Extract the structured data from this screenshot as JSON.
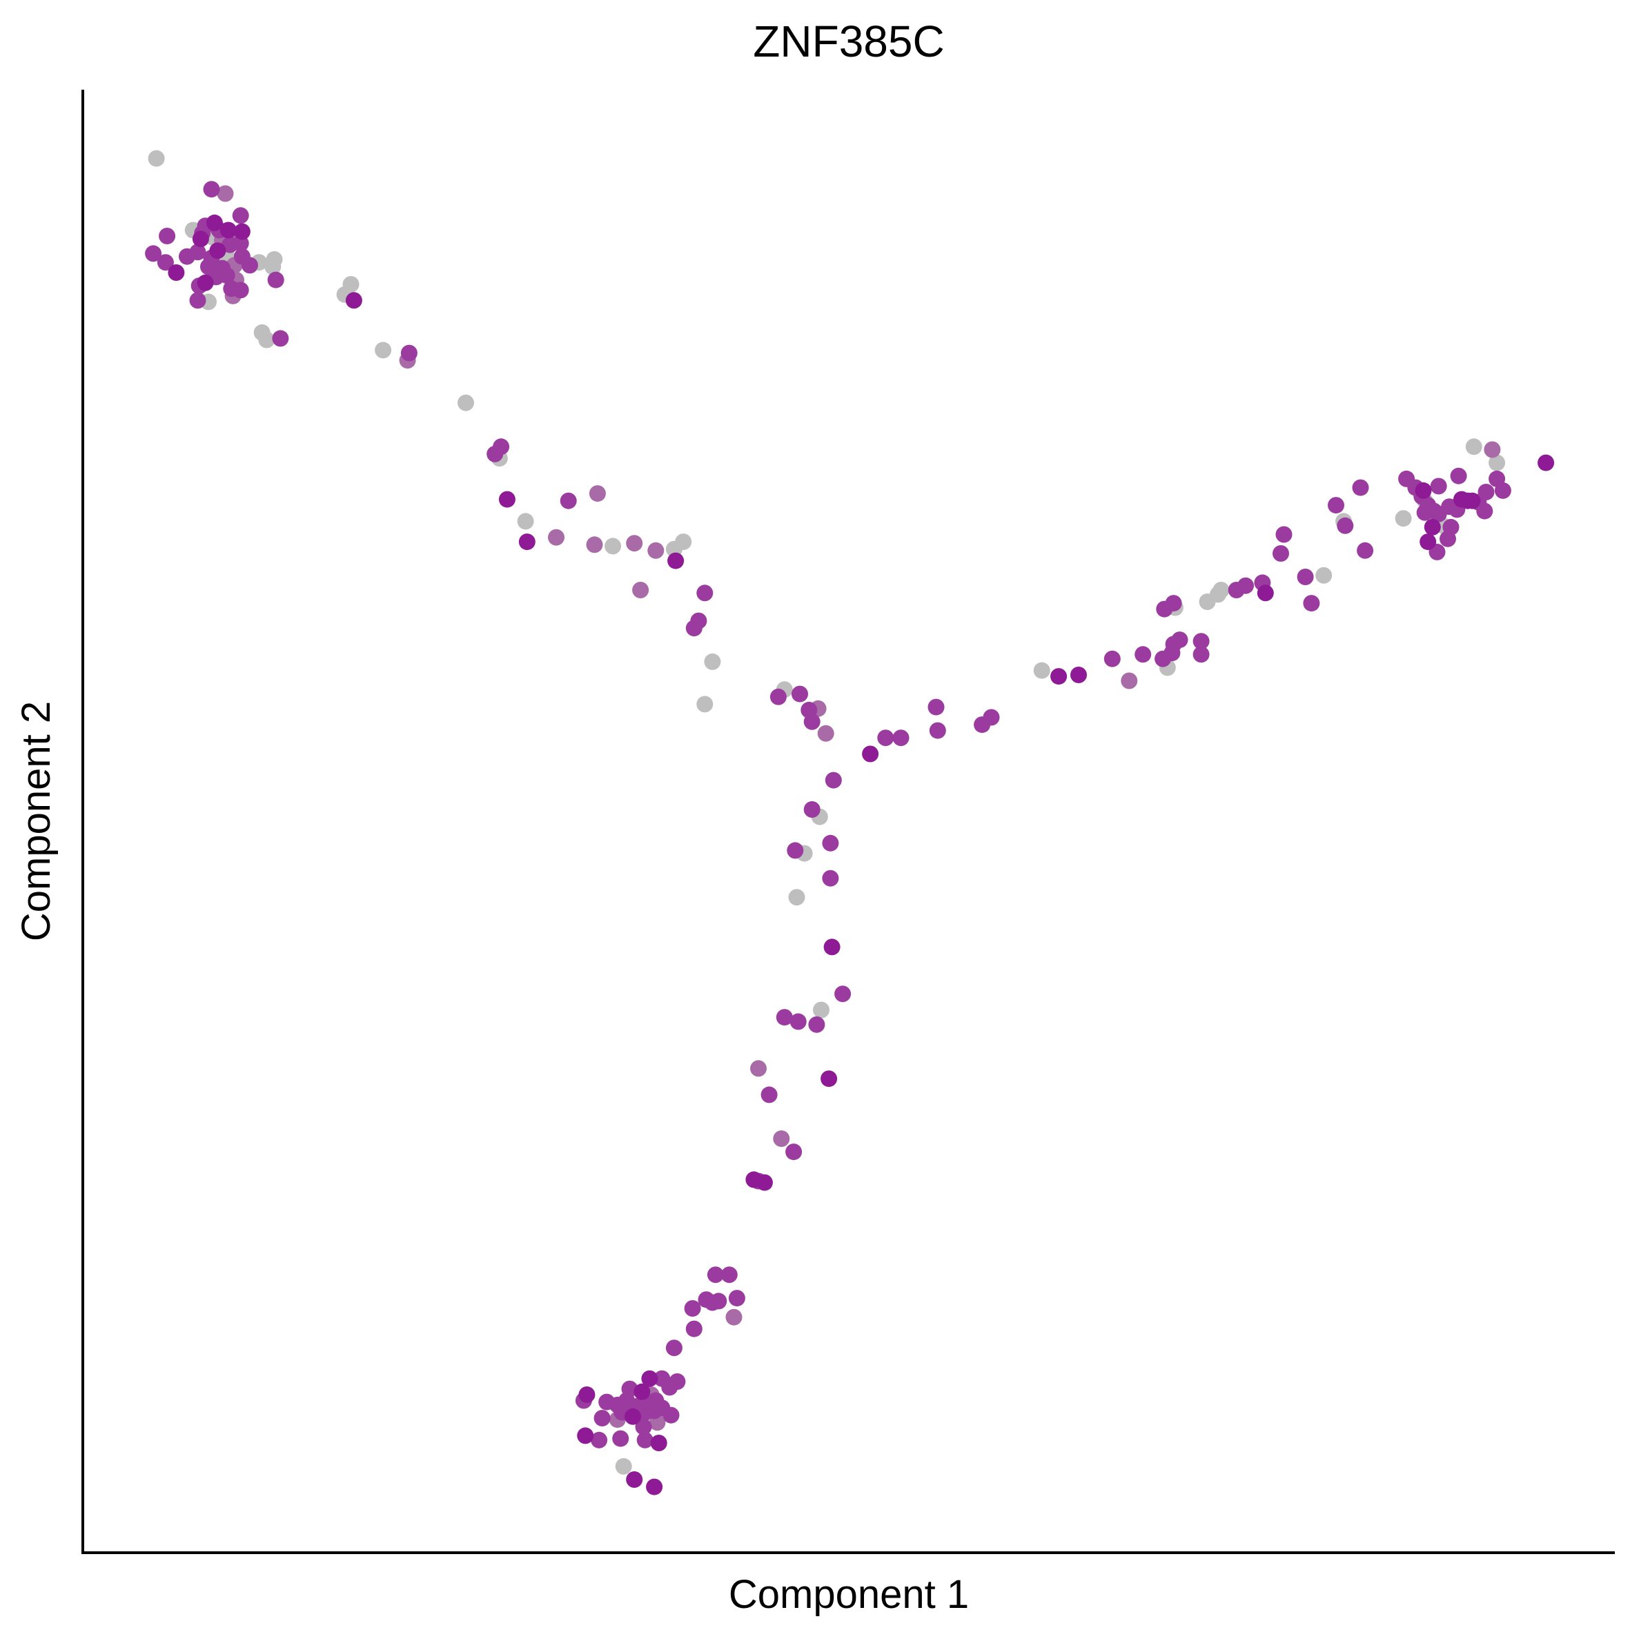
{
  "chart_data": {
    "type": "scatter",
    "title": "ZNF385C",
    "xlabel": "Component 1",
    "ylabel": "Component 2",
    "xlim": [
      0,
      1
    ],
    "ylim": [
      0,
      1
    ],
    "x_ticks": [],
    "y_ticks": [],
    "grid": false,
    "legend": "none",
    "colors": {
      "high": "#8e1a96",
      "mid": "#9b3b9f",
      "low": "#a96aa8",
      "none": "#bebebe"
    },
    "points": [
      {
        "x": 0.048,
        "y": 0.953,
        "level": "none"
      },
      {
        "x": 0.084,
        "y": 0.932,
        "level": "mid"
      },
      {
        "x": 0.093,
        "y": 0.929,
        "level": "low"
      },
      {
        "x": 0.103,
        "y": 0.914,
        "level": "mid"
      },
      {
        "x": 0.08,
        "y": 0.907,
        "level": "mid"
      },
      {
        "x": 0.086,
        "y": 0.909,
        "level": "high"
      },
      {
        "x": 0.072,
        "y": 0.904,
        "level": "none"
      },
      {
        "x": 0.078,
        "y": 0.902,
        "level": "mid"
      },
      {
        "x": 0.085,
        "y": 0.899,
        "level": "none"
      },
      {
        "x": 0.089,
        "y": 0.904,
        "level": "mid"
      },
      {
        "x": 0.095,
        "y": 0.904,
        "level": "high"
      },
      {
        "x": 0.098,
        "y": 0.899,
        "level": "low"
      },
      {
        "x": 0.104,
        "y": 0.903,
        "level": "high"
      },
      {
        "x": 0.055,
        "y": 0.9,
        "level": "mid"
      },
      {
        "x": 0.077,
        "y": 0.898,
        "level": "high"
      },
      {
        "x": 0.091,
        "y": 0.897,
        "level": "low"
      },
      {
        "x": 0.096,
        "y": 0.894,
        "level": "mid"
      },
      {
        "x": 0.103,
        "y": 0.895,
        "level": "mid"
      },
      {
        "x": 0.046,
        "y": 0.888,
        "level": "mid"
      },
      {
        "x": 0.068,
        "y": 0.886,
        "level": "mid"
      },
      {
        "x": 0.075,
        "y": 0.889,
        "level": "mid"
      },
      {
        "x": 0.084,
        "y": 0.885,
        "level": "mid"
      },
      {
        "x": 0.088,
        "y": 0.89,
        "level": "high"
      },
      {
        "x": 0.094,
        "y": 0.886,
        "level": "none"
      },
      {
        "x": 0.104,
        "y": 0.886,
        "level": "mid"
      },
      {
        "x": 0.115,
        "y": 0.882,
        "level": "none"
      },
      {
        "x": 0.125,
        "y": 0.884,
        "level": "none"
      },
      {
        "x": 0.054,
        "y": 0.882,
        "level": "mid"
      },
      {
        "x": 0.082,
        "y": 0.879,
        "level": "mid"
      },
      {
        "x": 0.091,
        "y": 0.878,
        "level": "mid"
      },
      {
        "x": 0.099,
        "y": 0.88,
        "level": "low"
      },
      {
        "x": 0.109,
        "y": 0.88,
        "level": "mid"
      },
      {
        "x": 0.124,
        "y": 0.879,
        "level": "none"
      },
      {
        "x": 0.061,
        "y": 0.875,
        "level": "high"
      },
      {
        "x": 0.087,
        "y": 0.872,
        "level": "mid"
      },
      {
        "x": 0.094,
        "y": 0.873,
        "level": "mid"
      },
      {
        "x": 0.1,
        "y": 0.87,
        "level": "low"
      },
      {
        "x": 0.126,
        "y": 0.87,
        "level": "mid"
      },
      {
        "x": 0.08,
        "y": 0.868,
        "level": "high"
      },
      {
        "x": 0.076,
        "y": 0.866,
        "level": "mid"
      },
      {
        "x": 0.097,
        "y": 0.864,
        "level": "mid"
      },
      {
        "x": 0.103,
        "y": 0.863,
        "level": "mid"
      },
      {
        "x": 0.098,
        "y": 0.859,
        "level": "low"
      },
      {
        "x": 0.075,
        "y": 0.856,
        "level": "mid"
      },
      {
        "x": 0.082,
        "y": 0.855,
        "level": "none"
      },
      {
        "x": 0.175,
        "y": 0.867,
        "level": "none"
      },
      {
        "x": 0.171,
        "y": 0.86,
        "level": "none"
      },
      {
        "x": 0.177,
        "y": 0.856,
        "level": "high"
      },
      {
        "x": 0.117,
        "y": 0.834,
        "level": "none"
      },
      {
        "x": 0.12,
        "y": 0.829,
        "level": "none"
      },
      {
        "x": 0.129,
        "y": 0.83,
        "level": "mid"
      },
      {
        "x": 0.196,
        "y": 0.822,
        "level": "none"
      },
      {
        "x": 0.213,
        "y": 0.82,
        "level": "mid"
      },
      {
        "x": 0.212,
        "y": 0.815,
        "level": "low"
      },
      {
        "x": 0.25,
        "y": 0.786,
        "level": "none"
      },
      {
        "x": 0.273,
        "y": 0.756,
        "level": "mid"
      },
      {
        "x": 0.269,
        "y": 0.751,
        "level": "mid"
      },
      {
        "x": 0.272,
        "y": 0.748,
        "level": "none"
      },
      {
        "x": 0.277,
        "y": 0.72,
        "level": "high"
      },
      {
        "x": 0.289,
        "y": 0.705,
        "level": "none"
      },
      {
        "x": 0.29,
        "y": 0.691,
        "level": "high"
      },
      {
        "x": 0.309,
        "y": 0.694,
        "level": "low"
      },
      {
        "x": 0.317,
        "y": 0.719,
        "level": "mid"
      },
      {
        "x": 0.336,
        "y": 0.724,
        "level": "low"
      },
      {
        "x": 0.334,
        "y": 0.689,
        "level": "low"
      },
      {
        "x": 0.346,
        "y": 0.688,
        "level": "none"
      },
      {
        "x": 0.36,
        "y": 0.69,
        "level": "low"
      },
      {
        "x": 0.374,
        "y": 0.685,
        "level": "low"
      },
      {
        "x": 0.386,
        "y": 0.686,
        "level": "none"
      },
      {
        "x": 0.392,
        "y": 0.691,
        "level": "none"
      },
      {
        "x": 0.387,
        "y": 0.678,
        "level": "high"
      },
      {
        "x": 0.364,
        "y": 0.658,
        "level": "low"
      },
      {
        "x": 0.406,
        "y": 0.656,
        "level": "mid"
      },
      {
        "x": 0.402,
        "y": 0.637,
        "level": "mid"
      },
      {
        "x": 0.399,
        "y": 0.632,
        "level": "mid"
      },
      {
        "x": 0.411,
        "y": 0.609,
        "level": "none"
      },
      {
        "x": 0.406,
        "y": 0.58,
        "level": "none"
      },
      {
        "x": 0.458,
        "y": 0.59,
        "level": "none"
      },
      {
        "x": 0.454,
        "y": 0.585,
        "level": "mid"
      },
      {
        "x": 0.468,
        "y": 0.587,
        "level": "mid"
      },
      {
        "x": 0.474,
        "y": 0.576,
        "level": "mid"
      },
      {
        "x": 0.48,
        "y": 0.577,
        "level": "low"
      },
      {
        "x": 0.476,
        "y": 0.568,
        "level": "mid"
      },
      {
        "x": 0.485,
        "y": 0.56,
        "level": "low"
      },
      {
        "x": 0.514,
        "y": 0.546,
        "level": "high"
      },
      {
        "x": 0.524,
        "y": 0.557,
        "level": "mid"
      },
      {
        "x": 0.534,
        "y": 0.557,
        "level": "mid"
      },
      {
        "x": 0.558,
        "y": 0.562,
        "level": "mid"
      },
      {
        "x": 0.557,
        "y": 0.578,
        "level": "mid"
      },
      {
        "x": 0.587,
        "y": 0.566,
        "level": "mid"
      },
      {
        "x": 0.593,
        "y": 0.571,
        "level": "mid"
      },
      {
        "x": 0.49,
        "y": 0.528,
        "level": "mid"
      },
      {
        "x": 0.476,
        "y": 0.508,
        "level": "mid"
      },
      {
        "x": 0.481,
        "y": 0.503,
        "level": "none"
      },
      {
        "x": 0.488,
        "y": 0.485,
        "level": "mid"
      },
      {
        "x": 0.465,
        "y": 0.48,
        "level": "mid"
      },
      {
        "x": 0.471,
        "y": 0.478,
        "level": "none"
      },
      {
        "x": 0.488,
        "y": 0.461,
        "level": "mid"
      },
      {
        "x": 0.466,
        "y": 0.448,
        "level": "none"
      },
      {
        "x": 0.489,
        "y": 0.414,
        "level": "high"
      },
      {
        "x": 0.496,
        "y": 0.382,
        "level": "mid"
      },
      {
        "x": 0.482,
        "y": 0.371,
        "level": "none"
      },
      {
        "x": 0.458,
        "y": 0.366,
        "level": "mid"
      },
      {
        "x": 0.467,
        "y": 0.363,
        "level": "mid"
      },
      {
        "x": 0.479,
        "y": 0.361,
        "level": "mid"
      },
      {
        "x": 0.487,
        "y": 0.324,
        "level": "high"
      },
      {
        "x": 0.441,
        "y": 0.331,
        "level": "low"
      },
      {
        "x": 0.448,
        "y": 0.313,
        "level": "mid"
      },
      {
        "x": 0.456,
        "y": 0.283,
        "level": "low"
      },
      {
        "x": 0.464,
        "y": 0.274,
        "level": "mid"
      },
      {
        "x": 0.438,
        "y": 0.255,
        "level": "high"
      },
      {
        "x": 0.441,
        "y": 0.254,
        "level": "mid"
      },
      {
        "x": 0.445,
        "y": 0.253,
        "level": "high"
      },
      {
        "x": 0.413,
        "y": 0.19,
        "level": "mid"
      },
      {
        "x": 0.422,
        "y": 0.19,
        "level": "mid"
      },
      {
        "x": 0.407,
        "y": 0.173,
        "level": "mid"
      },
      {
        "x": 0.411,
        "y": 0.171,
        "level": "mid"
      },
      {
        "x": 0.415,
        "y": 0.172,
        "level": "mid"
      },
      {
        "x": 0.427,
        "y": 0.174,
        "level": "mid"
      },
      {
        "x": 0.398,
        "y": 0.167,
        "level": "mid"
      },
      {
        "x": 0.425,
        "y": 0.161,
        "level": "low"
      },
      {
        "x": 0.399,
        "y": 0.153,
        "level": "mid"
      },
      {
        "x": 0.386,
        "y": 0.14,
        "level": "mid"
      },
      {
        "x": 0.37,
        "y": 0.119,
        "level": "high"
      },
      {
        "x": 0.378,
        "y": 0.119,
        "level": "mid"
      },
      {
        "x": 0.383,
        "y": 0.113,
        "level": "mid"
      },
      {
        "x": 0.388,
        "y": 0.117,
        "level": "mid"
      },
      {
        "x": 0.357,
        "y": 0.112,
        "level": "mid"
      },
      {
        "x": 0.365,
        "y": 0.11,
        "level": "high"
      },
      {
        "x": 0.371,
        "y": 0.108,
        "level": "low"
      },
      {
        "x": 0.374,
        "y": 0.104,
        "level": "mid"
      },
      {
        "x": 0.329,
        "y": 0.108,
        "level": "high"
      },
      {
        "x": 0.327,
        "y": 0.104,
        "level": "mid"
      },
      {
        "x": 0.342,
        "y": 0.103,
        "level": "mid"
      },
      {
        "x": 0.349,
        "y": 0.101,
        "level": "mid"
      },
      {
        "x": 0.355,
        "y": 0.104,
        "level": "mid"
      },
      {
        "x": 0.361,
        "y": 0.1,
        "level": "mid"
      },
      {
        "x": 0.369,
        "y": 0.102,
        "level": "mid"
      },
      {
        "x": 0.378,
        "y": 0.099,
        "level": "mid"
      },
      {
        "x": 0.384,
        "y": 0.094,
        "level": "mid"
      },
      {
        "x": 0.352,
        "y": 0.096,
        "level": "mid"
      },
      {
        "x": 0.359,
        "y": 0.093,
        "level": "high"
      },
      {
        "x": 0.366,
        "y": 0.095,
        "level": "mid"
      },
      {
        "x": 0.373,
        "y": 0.097,
        "level": "mid"
      },
      {
        "x": 0.339,
        "y": 0.092,
        "level": "mid"
      },
      {
        "x": 0.349,
        "y": 0.091,
        "level": "low"
      },
      {
        "x": 0.366,
        "y": 0.086,
        "level": "mid"
      },
      {
        "x": 0.375,
        "y": 0.089,
        "level": "low"
      },
      {
        "x": 0.328,
        "y": 0.08,
        "level": "high"
      },
      {
        "x": 0.337,
        "y": 0.077,
        "level": "mid"
      },
      {
        "x": 0.351,
        "y": 0.078,
        "level": "mid"
      },
      {
        "x": 0.367,
        "y": 0.077,
        "level": "mid"
      },
      {
        "x": 0.376,
        "y": 0.075,
        "level": "high"
      },
      {
        "x": 0.353,
        "y": 0.059,
        "level": "none"
      },
      {
        "x": 0.36,
        "y": 0.05,
        "level": "high"
      },
      {
        "x": 0.373,
        "y": 0.045,
        "level": "high"
      },
      {
        "x": 0.626,
        "y": 0.603,
        "level": "none"
      },
      {
        "x": 0.637,
        "y": 0.599,
        "level": "high"
      },
      {
        "x": 0.65,
        "y": 0.6,
        "level": "high"
      },
      {
        "x": 0.672,
        "y": 0.611,
        "level": "mid"
      },
      {
        "x": 0.683,
        "y": 0.596,
        "level": "low"
      },
      {
        "x": 0.692,
        "y": 0.614,
        "level": "mid"
      },
      {
        "x": 0.705,
        "y": 0.611,
        "level": "mid"
      },
      {
        "x": 0.711,
        "y": 0.615,
        "level": "mid"
      },
      {
        "x": 0.708,
        "y": 0.605,
        "level": "none"
      },
      {
        "x": 0.712,
        "y": 0.621,
        "level": "mid"
      },
      {
        "x": 0.716,
        "y": 0.624,
        "level": "mid"
      },
      {
        "x": 0.73,
        "y": 0.614,
        "level": "mid"
      },
      {
        "x": 0.73,
        "y": 0.623,
        "level": "mid"
      },
      {
        "x": 0.706,
        "y": 0.645,
        "level": "mid"
      },
      {
        "x": 0.712,
        "y": 0.649,
        "level": "mid"
      },
      {
        "x": 0.713,
        "y": 0.646,
        "level": "none"
      },
      {
        "x": 0.734,
        "y": 0.65,
        "level": "none"
      },
      {
        "x": 0.741,
        "y": 0.655,
        "level": "none"
      },
      {
        "x": 0.743,
        "y": 0.658,
        "level": "none"
      },
      {
        "x": 0.753,
        "y": 0.658,
        "level": "mid"
      },
      {
        "x": 0.759,
        "y": 0.661,
        "level": "mid"
      },
      {
        "x": 0.77,
        "y": 0.663,
        "level": "mid"
      },
      {
        "x": 0.772,
        "y": 0.656,
        "level": "high"
      },
      {
        "x": 0.782,
        "y": 0.683,
        "level": "mid"
      },
      {
        "x": 0.784,
        "y": 0.696,
        "level": "mid"
      },
      {
        "x": 0.798,
        "y": 0.667,
        "level": "mid"
      },
      {
        "x": 0.802,
        "y": 0.649,
        "level": "mid"
      },
      {
        "x": 0.81,
        "y": 0.668,
        "level": "none"
      },
      {
        "x": 0.818,
        "y": 0.716,
        "level": "mid"
      },
      {
        "x": 0.823,
        "y": 0.705,
        "level": "none"
      },
      {
        "x": 0.824,
        "y": 0.702,
        "level": "mid"
      },
      {
        "x": 0.834,
        "y": 0.728,
        "level": "mid"
      },
      {
        "x": 0.837,
        "y": 0.685,
        "level": "mid"
      },
      {
        "x": 0.862,
        "y": 0.707,
        "level": "none"
      },
      {
        "x": 0.864,
        "y": 0.734,
        "level": "mid"
      },
      {
        "x": 0.87,
        "y": 0.728,
        "level": "mid"
      },
      {
        "x": 0.875,
        "y": 0.726,
        "level": "high"
      },
      {
        "x": 0.874,
        "y": 0.722,
        "level": "mid"
      },
      {
        "x": 0.876,
        "y": 0.719,
        "level": "none"
      },
      {
        "x": 0.878,
        "y": 0.716,
        "level": "mid"
      },
      {
        "x": 0.882,
        "y": 0.712,
        "level": "mid"
      },
      {
        "x": 0.876,
        "y": 0.711,
        "level": "mid"
      },
      {
        "x": 0.885,
        "y": 0.71,
        "level": "mid"
      },
      {
        "x": 0.881,
        "y": 0.701,
        "level": "high"
      },
      {
        "x": 0.882,
        "y": 0.703,
        "level": "none"
      },
      {
        "x": 0.888,
        "y": 0.702,
        "level": "none"
      },
      {
        "x": 0.885,
        "y": 0.729,
        "level": "mid"
      },
      {
        "x": 0.892,
        "y": 0.715,
        "level": "mid"
      },
      {
        "x": 0.897,
        "y": 0.713,
        "level": "mid"
      },
      {
        "x": 0.9,
        "y": 0.72,
        "level": "high"
      },
      {
        "x": 0.904,
        "y": 0.719,
        "level": "high"
      },
      {
        "x": 0.907,
        "y": 0.719,
        "level": "high"
      },
      {
        "x": 0.911,
        "y": 0.718,
        "level": "mid"
      },
      {
        "x": 0.893,
        "y": 0.701,
        "level": "mid"
      },
      {
        "x": 0.891,
        "y": 0.693,
        "level": "mid"
      },
      {
        "x": 0.878,
        "y": 0.691,
        "level": "high"
      },
      {
        "x": 0.884,
        "y": 0.684,
        "level": "mid"
      },
      {
        "x": 0.898,
        "y": 0.736,
        "level": "mid"
      },
      {
        "x": 0.915,
        "y": 0.712,
        "level": "mid"
      },
      {
        "x": 0.916,
        "y": 0.725,
        "level": "mid"
      },
      {
        "x": 0.923,
        "y": 0.734,
        "level": "mid"
      },
      {
        "x": 0.927,
        "y": 0.726,
        "level": "mid"
      },
      {
        "x": 0.923,
        "y": 0.745,
        "level": "none"
      },
      {
        "x": 0.908,
        "y": 0.756,
        "level": "none"
      },
      {
        "x": 0.92,
        "y": 0.754,
        "level": "low"
      },
      {
        "x": 0.955,
        "y": 0.745,
        "level": "high"
      }
    ]
  }
}
